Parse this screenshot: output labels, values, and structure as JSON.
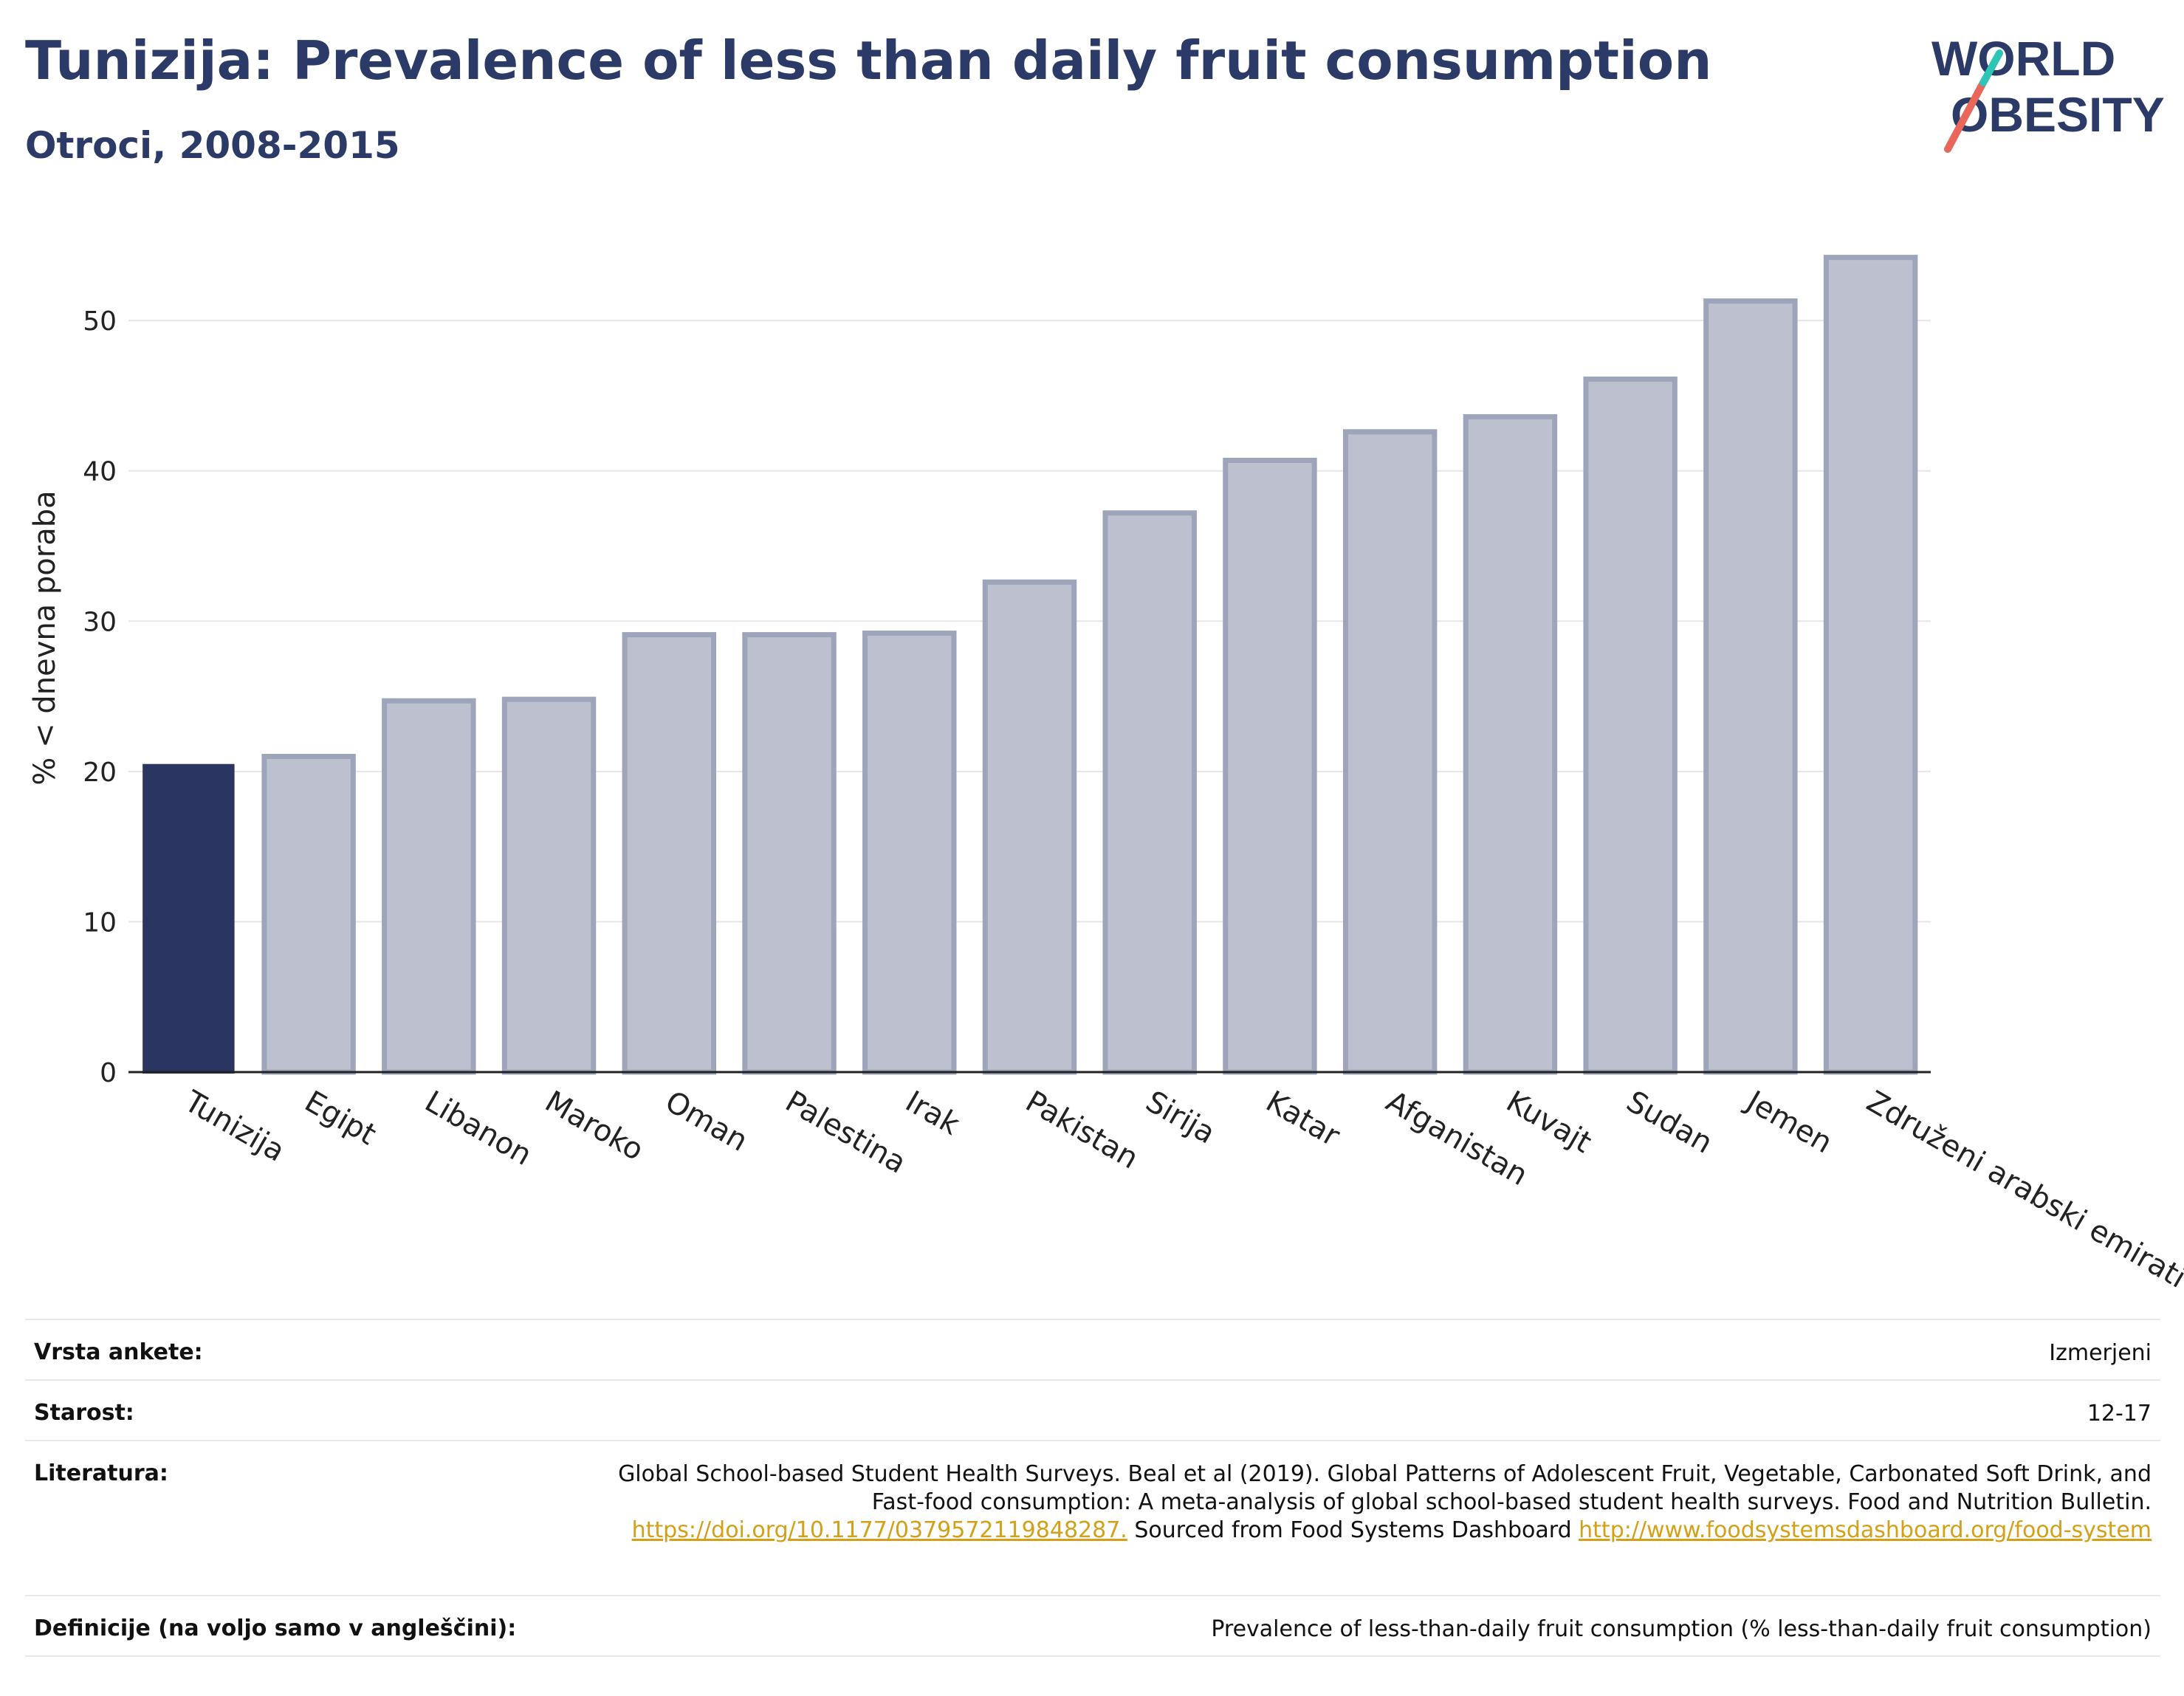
{
  "header": {
    "title": "Tunizija: Prevalence of less than daily fruit consumption",
    "subtitle": "Otroci, 2008-2015"
  },
  "logo": {
    "line1": "WORLD",
    "line2": "OBESITY",
    "colors": {
      "text": "#2b3a67",
      "slash_red": "#e8675a",
      "slash_teal": "#2ec4b6"
    }
  },
  "chart_data": {
    "type": "bar",
    "ylabel": "% < dnevna poraba",
    "xlabel": "",
    "ylim": [
      0,
      56
    ],
    "yticks": [
      0,
      10,
      20,
      30,
      40,
      50
    ],
    "grid": true,
    "highlight": "Tunizija",
    "colors": {
      "highlight": "#2b3562",
      "other_fill": "#bcc0cf",
      "other_edge": "#9ea4ba"
    },
    "categories": [
      "Tunizija",
      "Egipt",
      "Libanon",
      "Maroko",
      "Oman",
      "Palestina",
      "Irak",
      "Pakistan",
      "Sirija",
      "Katar",
      "Afganistan",
      "Kuvajt",
      "Sudan",
      "Jemen",
      "Združeni arabski emirati"
    ],
    "values": [
      20.4,
      21.0,
      24.7,
      24.8,
      29.1,
      29.1,
      29.2,
      32.6,
      37.2,
      40.7,
      42.6,
      43.6,
      46.1,
      51.3,
      54.2
    ]
  },
  "meta": {
    "survey_type": {
      "label": "Vrsta ankete:",
      "value": "Izmerjeni"
    },
    "age": {
      "label": "Starost:",
      "value": "12-17"
    },
    "literature": {
      "label": "Literatura:",
      "text_part1": "Global School-based Student Health Surveys. Beal et al (2019). Global Patterns of Adolescent Fruit, Vegetable, Carbonated Soft Drink, and Fast-food consumption: A meta-analysis of global school-based student health surveys. Food and Nutrition Bulletin. ",
      "link1": "https://doi.org/10.1177/0379572119848287.",
      "text_part2": " Sourced from Food Systems Dashboard ",
      "link2": "http://www.foodsystemsdashboard.org/food-system"
    },
    "definitions": {
      "label": "Definicije (na voljo samo v angleščini):",
      "value": "Prevalence of less-than-daily fruit consumption (% less-than-daily fruit consumption)"
    }
  }
}
